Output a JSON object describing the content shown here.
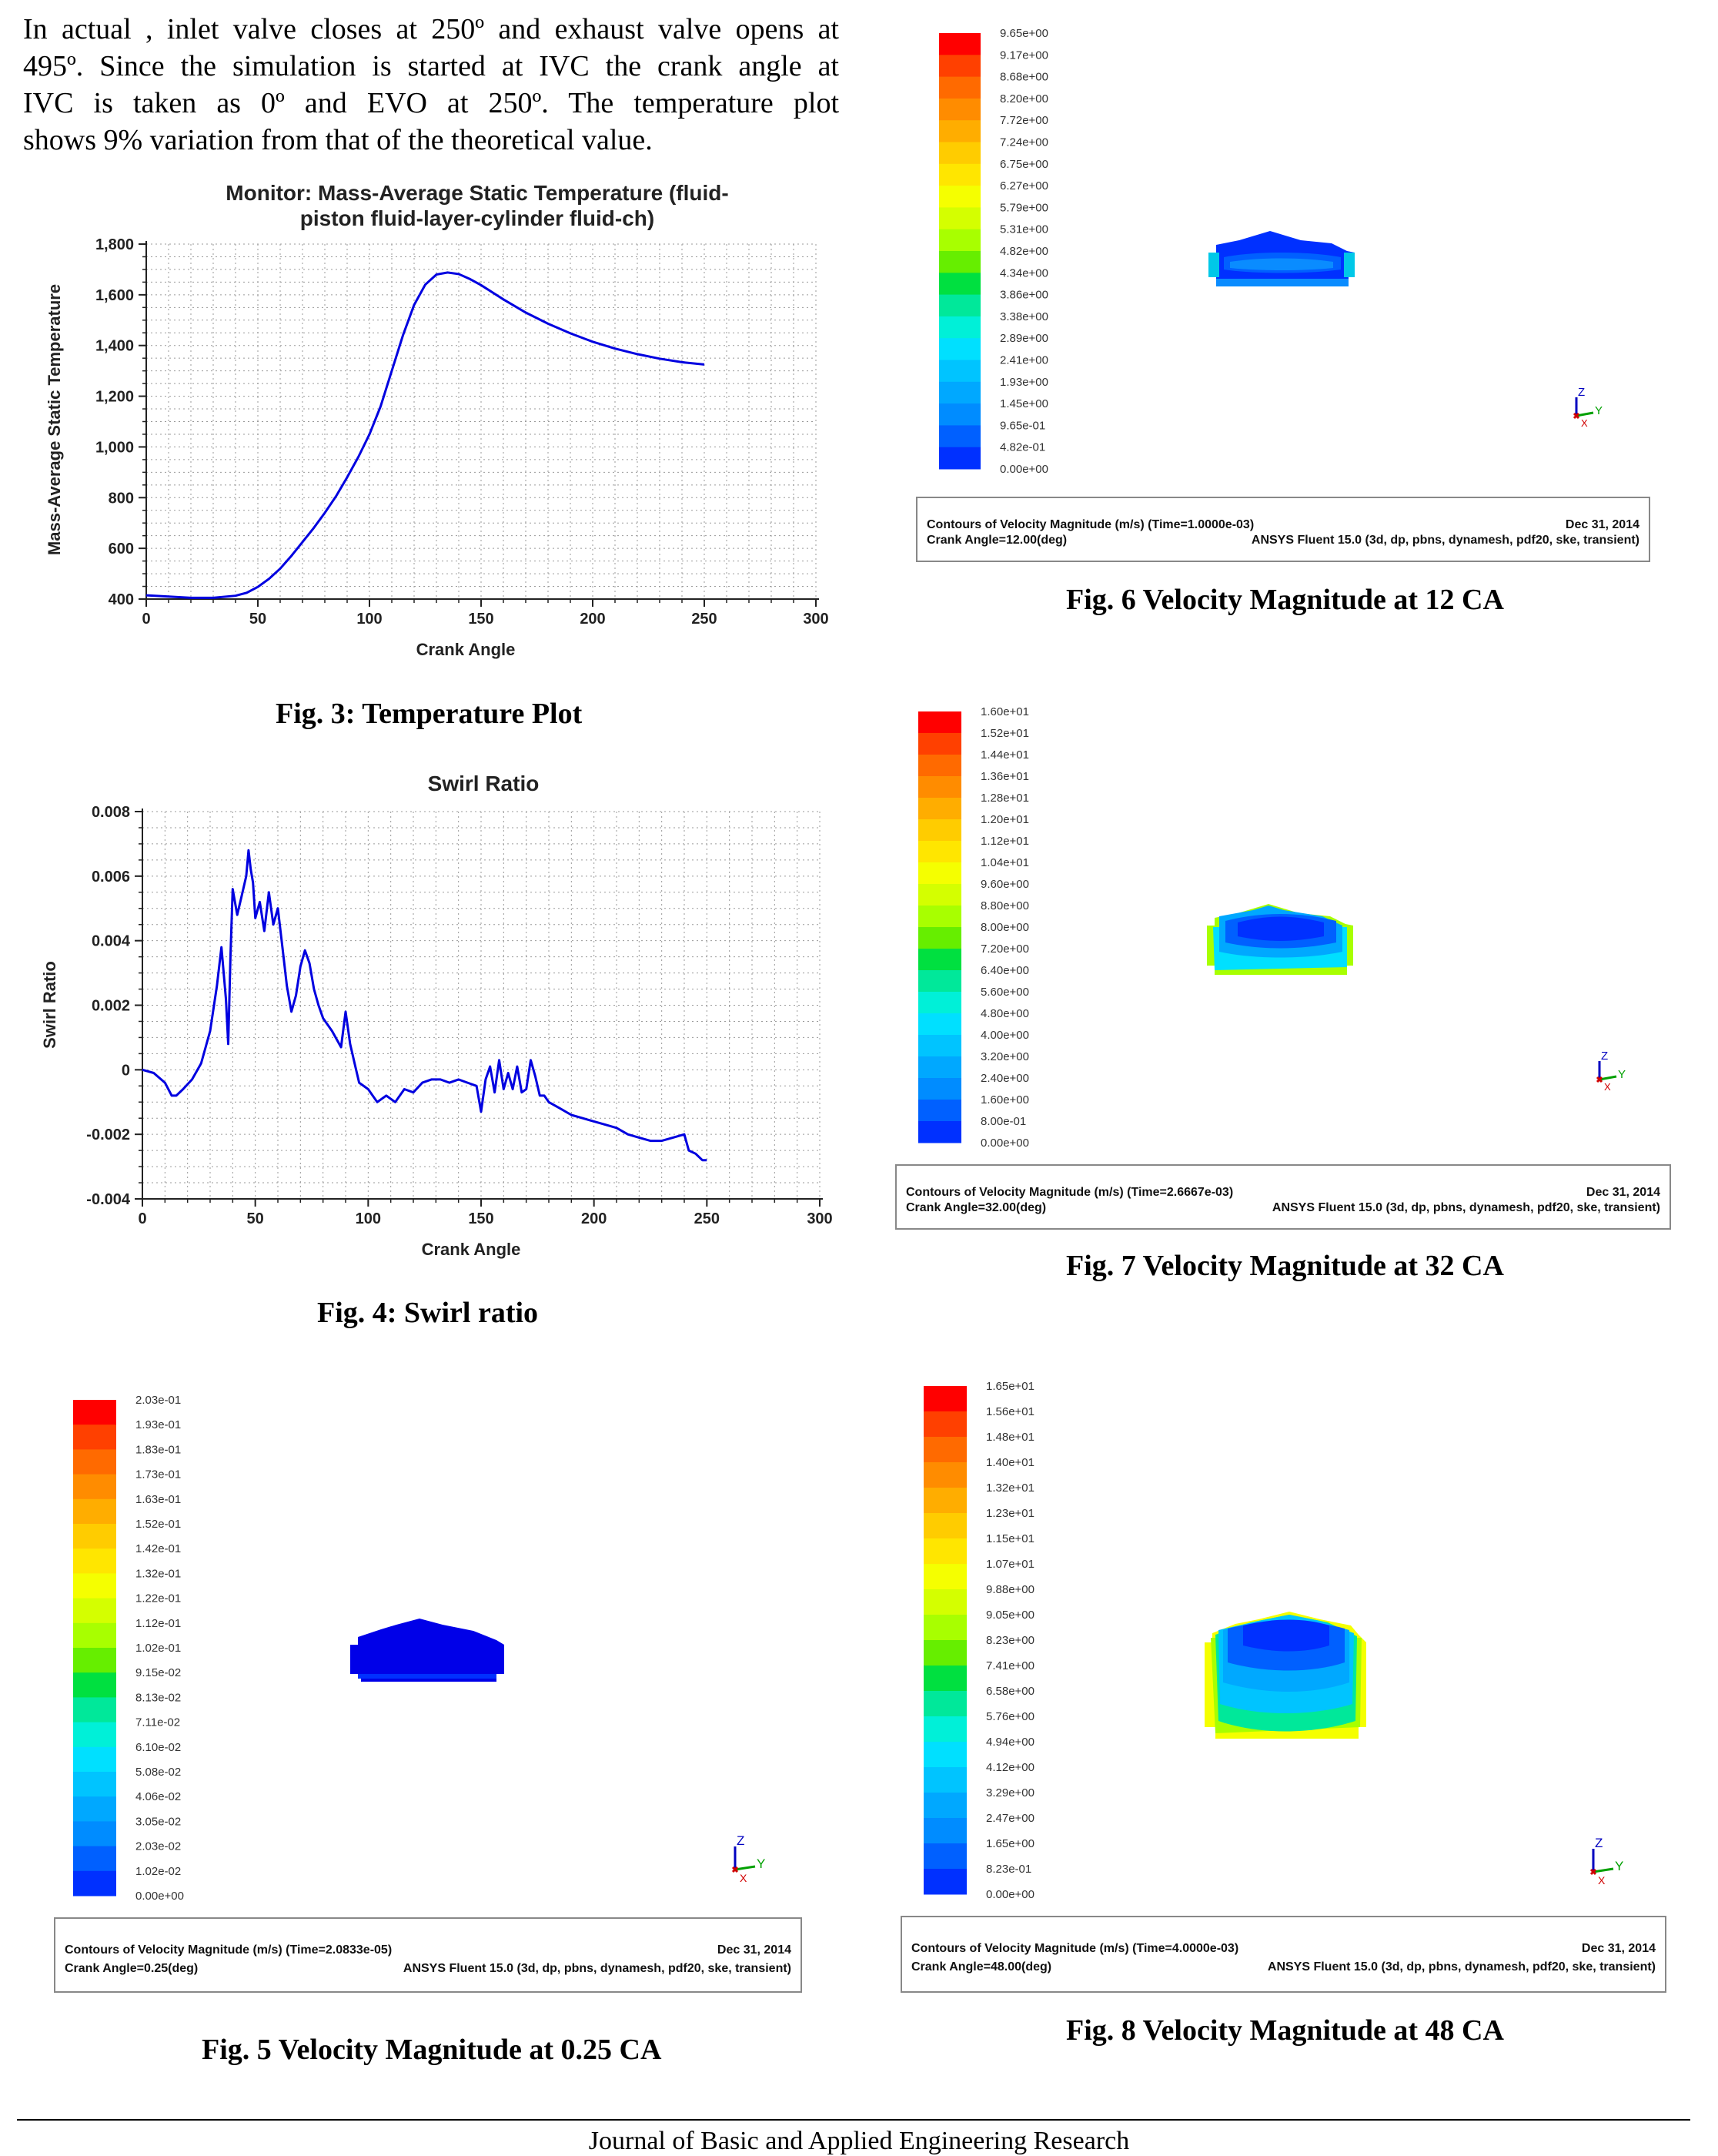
{
  "paragraph": {
    "lines": [
      "In actual , inlet valve closes at 250º and exhaust valve opens at",
      "495º. Since the simulation is started at IVC the crank angle at",
      "IVC is taken as 0º and EVO at 250º. The temperature plot",
      "shows 9% variation from that of the theoretical value."
    ]
  },
  "fig3": {
    "caption": "Fig. 3: Temperature Plot",
    "chart_data": {
      "type": "line",
      "title_line1": "Monitor: Mass-Average Static Temperature (fluid-",
      "title_line2": "piston fluid-layer-cylinder fluid-ch)",
      "xlabel": "Crank Angle",
      "ylabel": "Mass-Average Static Temperature",
      "xlim": [
        0,
        300
      ],
      "ylim": [
        400,
        1800
      ],
      "xticks": [
        0,
        50,
        100,
        150,
        200,
        250,
        300
      ],
      "yticks": [
        400,
        600,
        800,
        1000,
        1200,
        1400,
        1600,
        1800
      ],
      "ytick_labels": [
        "400",
        "600",
        "800",
        "1,000",
        "1,200",
        "1,400",
        "1,600",
        "1,800"
      ],
      "color": "#0000e0",
      "x": [
        0,
        10,
        20,
        30,
        40,
        45,
        50,
        55,
        60,
        65,
        70,
        75,
        80,
        85,
        90,
        95,
        100,
        105,
        110,
        115,
        120,
        125,
        130,
        135,
        140,
        145,
        150,
        160,
        170,
        180,
        190,
        200,
        210,
        220,
        230,
        240,
        250
      ],
      "y": [
        415,
        410,
        405,
        405,
        413,
        425,
        448,
        480,
        520,
        570,
        625,
        680,
        740,
        805,
        880,
        960,
        1050,
        1160,
        1300,
        1440,
        1560,
        1640,
        1680,
        1688,
        1682,
        1662,
        1638,
        1582,
        1530,
        1486,
        1448,
        1415,
        1388,
        1366,
        1348,
        1334,
        1325
      ]
    }
  },
  "fig4": {
    "caption": "Fig. 4: Swirl ratio",
    "chart_data": {
      "type": "line",
      "title": "Swirl Ratio",
      "xlabel": "Crank Angle",
      "ylabel": "Swirl Ratio",
      "xlim": [
        0,
        300
      ],
      "ylim": [
        -0.004,
        0.008
      ],
      "xticks": [
        0,
        50,
        100,
        150,
        200,
        250,
        300
      ],
      "yticks": [
        -0.004,
        -0.002,
        0,
        0.002,
        0.004,
        0.006,
        0.008
      ],
      "ytick_labels": [
        "-0.004",
        "-0.002",
        "0",
        "0.002",
        "0.004",
        "0.006",
        "0.008"
      ],
      "color": "#0000e0",
      "x": [
        0,
        5,
        10,
        13,
        15,
        18,
        22,
        26,
        30,
        33,
        35,
        37,
        38,
        39,
        40,
        42,
        44,
        46,
        47,
        48,
        49,
        50,
        52,
        54,
        56,
        58,
        60,
        62,
        64,
        66,
        68,
        70,
        72,
        74,
        76,
        78,
        80,
        84,
        88,
        90,
        92,
        94,
        96,
        100,
        104,
        108,
        112,
        116,
        120,
        124,
        128,
        132,
        136,
        140,
        144,
        148,
        150,
        152,
        154,
        156,
        158,
        160,
        162,
        164,
        166,
        168,
        170,
        172,
        174,
        176,
        178,
        180,
        185,
        190,
        195,
        200,
        205,
        210,
        215,
        220,
        225,
        230,
        235,
        240,
        242,
        245,
        248,
        250
      ],
      "y": [
        0.0,
        -0.0001,
        -0.0004,
        -0.0008,
        -0.0008,
        -0.0006,
        -0.0003,
        0.0002,
        0.0012,
        0.0026,
        0.0038,
        0.0022,
        0.0008,
        0.0035,
        0.0056,
        0.0048,
        0.0054,
        0.006,
        0.0068,
        0.0062,
        0.0058,
        0.0047,
        0.0052,
        0.0043,
        0.0055,
        0.0045,
        0.005,
        0.0038,
        0.0026,
        0.0018,
        0.0023,
        0.0032,
        0.0037,
        0.0033,
        0.0025,
        0.002,
        0.0016,
        0.0012,
        0.0007,
        0.0018,
        0.0008,
        0.0002,
        -0.0004,
        -0.0006,
        -0.001,
        -0.0008,
        -0.001,
        -0.0006,
        -0.0007,
        -0.0004,
        -0.0003,
        -0.0003,
        -0.0004,
        -0.0003,
        -0.0004,
        -0.0005,
        -0.0013,
        -0.0003,
        0.0001,
        -0.0007,
        0.0003,
        -0.0006,
        -0.0001,
        -0.0006,
        0.0001,
        -0.0007,
        -0.0006,
        0.0003,
        -0.0002,
        -0.0008,
        -0.0008,
        -0.001,
        -0.0012,
        -0.0014,
        -0.0015,
        -0.0016,
        -0.0017,
        -0.0018,
        -0.002,
        -0.0021,
        -0.0022,
        -0.0022,
        -0.0021,
        -0.002,
        -0.0025,
        -0.0026,
        -0.0028,
        -0.0028
      ]
    }
  },
  "fig5": {
    "caption": "Fig. 5 Velocity Magnitude at 0.25 CA",
    "legend": [
      "2.03e-01",
      "1.93e-01",
      "1.83e-01",
      "1.73e-01",
      "1.63e-01",
      "1.52e-01",
      "1.42e-01",
      "1.32e-01",
      "1.22e-01",
      "1.12e-01",
      "1.02e-01",
      "9.15e-02",
      "8.13e-02",
      "7.11e-02",
      "6.10e-02",
      "5.08e-02",
      "4.06e-02",
      "3.05e-02",
      "2.03e-02",
      "1.02e-02",
      "0.00e+00"
    ],
    "info_line1_left": "Contours of Velocity Magnitude (m/s)  (Time=2.0833e-05)",
    "info_line1_right": "Dec 31, 2014",
    "info_line2_left": "Crank Angle=0.25(deg)",
    "info_line2_right": "ANSYS Fluent 15.0 (3d, dp, pbns, dynamesh, pdf20, ske, transient)"
  },
  "fig6": {
    "caption": "Fig. 6 Velocity Magnitude at 12 CA",
    "legend": [
      "9.65e+00",
      "9.17e+00",
      "8.68e+00",
      "8.20e+00",
      "7.72e+00",
      "7.24e+00",
      "6.75e+00",
      "6.27e+00",
      "5.79e+00",
      "5.31e+00",
      "4.82e+00",
      "4.34e+00",
      "3.86e+00",
      "3.38e+00",
      "2.89e+00",
      "2.41e+00",
      "1.93e+00",
      "1.45e+00",
      "9.65e-01",
      "4.82e-01",
      "0.00e+00"
    ],
    "info_line1_left": "Contours of Velocity Magnitude (m/s)  (Time=1.0000e-03)",
    "info_line1_right": "Dec 31, 2014",
    "info_line2_left": "Crank Angle=12.00(deg)",
    "info_line2_right": "ANSYS Fluent 15.0 (3d, dp, pbns, dynamesh, pdf20, ske, transient)"
  },
  "fig7": {
    "caption": "Fig. 7 Velocity Magnitude at 32 CA",
    "legend": [
      "1.60e+01",
      "1.52e+01",
      "1.44e+01",
      "1.36e+01",
      "1.28e+01",
      "1.20e+01",
      "1.12e+01",
      "1.04e+01",
      "9.60e+00",
      "8.80e+00",
      "8.00e+00",
      "7.20e+00",
      "6.40e+00",
      "5.60e+00",
      "4.80e+00",
      "4.00e+00",
      "3.20e+00",
      "2.40e+00",
      "1.60e+00",
      "8.00e-01",
      "0.00e+00"
    ],
    "info_line1_left": "Contours of Velocity Magnitude (m/s)  (Time=2.6667e-03)",
    "info_line1_right": "Dec 31, 2014",
    "info_line2_left": "Crank Angle=32.00(deg)",
    "info_line2_right": "ANSYS Fluent 15.0 (3d, dp, pbns, dynamesh, pdf20, ske, transient)"
  },
  "fig8": {
    "caption": "Fig. 8 Velocity Magnitude at 48 CA",
    "legend": [
      "1.65e+01",
      "1.56e+01",
      "1.48e+01",
      "1.40e+01",
      "1.32e+01",
      "1.23e+01",
      "1.15e+01",
      "1.07e+01",
      "9.88e+00",
      "9.05e+00",
      "8.23e+00",
      "7.41e+00",
      "6.58e+00",
      "5.76e+00",
      "4.94e+00",
      "4.12e+00",
      "3.29e+00",
      "2.47e+00",
      "1.65e+00",
      "8.23e-01",
      "0.00e+00"
    ],
    "info_line1_left": "Contours of Velocity Magnitude (m/s)  (Time=4.0000e-03)",
    "info_line1_right": "Dec 31, 2014",
    "info_line2_left": "Crank Angle=48.00(deg)",
    "info_line2_right": "ANSYS Fluent 15.0 (3d, dp, pbns, dynamesh, pdf20, ske, transient)"
  },
  "axis_triad": {
    "z": "Z",
    "x": "X",
    "y": "Y"
  },
  "colormap": [
    "#ff0000",
    "#ff4000",
    "#ff6a00",
    "#ff8c00",
    "#ffad00",
    "#ffcc00",
    "#ffe600",
    "#f5ff00",
    "#d4ff00",
    "#a8ff00",
    "#66ee00",
    "#00e040",
    "#00e89a",
    "#00f0d8",
    "#00e0ff",
    "#00c4ff",
    "#00a8ff",
    "#008cff",
    "#0060ff",
    "#0030ff",
    "#0000e8"
  ],
  "footer": "Journal of Basic and Applied Engineering Research"
}
